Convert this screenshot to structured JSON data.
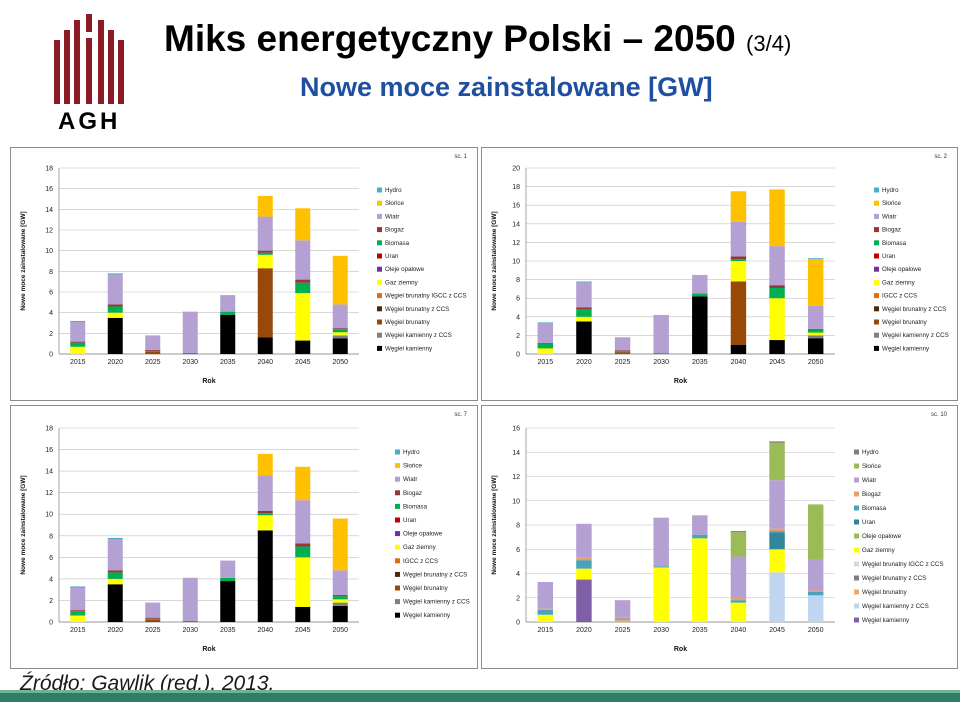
{
  "header": {
    "title_main": "Miks energetyczny Polski – 2050",
    "title_suffix": "(3/4)",
    "subtitle": "Nowe moce zainstalowane [GW]",
    "logo_text": "AGH"
  },
  "footer": {
    "source": "Źródło: Gawlik (red.), 2013."
  },
  "colors": {
    "title": "#000000",
    "subtitle": "#1f4fa0",
    "bottom_bar": "#2e7d64",
    "logo": "#8b1b24"
  },
  "chart_data": [
    {
      "type": "bar",
      "stacked": true,
      "scenario_label": "sc. 1",
      "xlabel": "Rok",
      "ylabel": "Nowe moce zainstalowane [GW]",
      "ylim": [
        0,
        18
      ],
      "yticks": [
        0,
        2,
        4,
        6,
        8,
        10,
        12,
        14,
        16,
        18
      ],
      "categories": [
        "2015",
        "2020",
        "2025",
        "2030",
        "2035",
        "2040",
        "2045",
        "2050"
      ],
      "legend_position": "right",
      "series": [
        {
          "name": "Węgiel kamienny",
          "color": "#000000",
          "values": [
            0,
            3.5,
            0,
            0,
            3.8,
            1.6,
            1.3,
            1.5
          ]
        },
        {
          "name": "Węgiel kamienny z CCS",
          "color": "#7f7f7f",
          "values": [
            0,
            0,
            0,
            0,
            0,
            0,
            0,
            0.3
          ]
        },
        {
          "name": "Węgiel brunatny",
          "color": "#984807",
          "values": [
            0,
            0,
            0.2,
            0,
            0,
            6.7,
            0,
            0
          ]
        },
        {
          "name": "Węgiel brunatny z CCS",
          "color": "#4a2a0a",
          "values": [
            0,
            0,
            0,
            0,
            0,
            0,
            0,
            0
          ]
        },
        {
          "name": "Węgiel brunatny IGCC z CCS",
          "color": "#e36c0a",
          "values": [
            0,
            0,
            0,
            0,
            0,
            0,
            0,
            0
          ]
        },
        {
          "name": "Gaz ziemny",
          "color": "#ffff00",
          "values": [
            0.7,
            0.5,
            0,
            0,
            0,
            1.3,
            4.6,
            0.3
          ]
        },
        {
          "name": "Oleje opałowe",
          "color": "#7030a0",
          "values": [
            0,
            0,
            0,
            0,
            0,
            0,
            0,
            0
          ]
        },
        {
          "name": "Uran",
          "color": "#c00000",
          "values": [
            0,
            0,
            0,
            0,
            0,
            0,
            0,
            0
          ]
        },
        {
          "name": "Biomasa",
          "color": "#00b050",
          "values": [
            0.4,
            0.6,
            0.1,
            0.1,
            0.3,
            0.2,
            1.0,
            0.3
          ]
        },
        {
          "name": "Biogaz",
          "color": "#963634",
          "values": [
            0.1,
            0.2,
            0.1,
            0,
            0,
            0.2,
            0.3,
            0.1
          ]
        },
        {
          "name": "Wiatr",
          "color": "#b4a0d2",
          "values": [
            1.9,
            2.9,
            1.4,
            4.0,
            1.6,
            3.3,
            3.8,
            2.3
          ]
        },
        {
          "name": "Słońce",
          "color": "#ffc000",
          "values": [
            0,
            0,
            0,
            0,
            0,
            2.0,
            3.1,
            4.7
          ]
        },
        {
          "name": "Hydro",
          "color": "#4bacc6",
          "values": [
            0.1,
            0.1,
            0,
            0,
            0,
            0,
            0,
            0
          ]
        }
      ]
    },
    {
      "type": "bar",
      "stacked": true,
      "scenario_label": "sc. 2",
      "xlabel": "Rok",
      "ylabel": "Nowe moce zainstalowane [GW]",
      "ylim": [
        0,
        20
      ],
      "yticks": [
        0,
        2,
        4,
        6,
        8,
        10,
        12,
        14,
        16,
        18,
        20
      ],
      "categories": [
        "2015",
        "2020",
        "2025",
        "2030",
        "2035",
        "2040",
        "2045",
        "2050"
      ],
      "legend_position": "right",
      "series": [
        {
          "name": "Węgiel kamienny",
          "color": "#000000",
          "values": [
            0,
            3.5,
            0,
            0,
            6.2,
            1.0,
            1.5,
            1.7
          ]
        },
        {
          "name": "Węgiel kamienny z CCS",
          "color": "#7f7f7f",
          "values": [
            0,
            0,
            0,
            0,
            0,
            0,
            0,
            0.3
          ]
        },
        {
          "name": "Węgiel brunatny",
          "color": "#984807",
          "values": [
            0,
            0,
            0.2,
            0,
            0,
            6.8,
            0,
            0
          ]
        },
        {
          "name": "Węgiel brunatny z CCS",
          "color": "#4a2a0a",
          "values": [
            0,
            0,
            0,
            0,
            0,
            0,
            0,
            0
          ]
        },
        {
          "name": "IGCC z CCS",
          "color": "#e36c0a",
          "values": [
            0,
            0,
            0,
            0,
            0,
            0,
            0,
            0
          ]
        },
        {
          "name": "Gaz ziemny",
          "color": "#ffff00",
          "values": [
            0.6,
            0.5,
            0,
            0,
            0,
            2.2,
            4.5,
            0.3
          ]
        },
        {
          "name": "Oleje opałowe",
          "color": "#7030a0",
          "values": [
            0,
            0,
            0,
            0,
            0,
            0,
            0,
            0
          ]
        },
        {
          "name": "Uran",
          "color": "#c00000",
          "values": [
            0,
            0,
            0,
            0,
            0,
            0,
            0,
            0
          ]
        },
        {
          "name": "Biomasa",
          "color": "#00b050",
          "values": [
            0.5,
            0.8,
            0.1,
            0.1,
            0.3,
            0.2,
            1.1,
            0.3
          ]
        },
        {
          "name": "Biogaz",
          "color": "#963634",
          "values": [
            0.1,
            0.2,
            0.1,
            0,
            0,
            0.3,
            0.3,
            0.1
          ]
        },
        {
          "name": "Wiatr",
          "color": "#b4a0d2",
          "values": [
            2.1,
            2.7,
            1.4,
            4.1,
            2.0,
            3.7,
            4.2,
            2.5
          ]
        },
        {
          "name": "Słońce",
          "color": "#ffc000",
          "values": [
            0,
            0,
            0,
            0,
            0,
            3.3,
            6.1,
            5.0
          ]
        },
        {
          "name": "Hydro",
          "color": "#4bacc6",
          "values": [
            0.1,
            0.1,
            0,
            0,
            0,
            0,
            0,
            0.1
          ]
        }
      ]
    },
    {
      "type": "bar",
      "stacked": true,
      "scenario_label": "sc. 7",
      "xlabel": "Rok",
      "ylabel": "Nowe moce zainstalowane [GW]",
      "ylim": [
        0,
        18
      ],
      "yticks": [
        0,
        2,
        4,
        6,
        8,
        10,
        12,
        14,
        16,
        18
      ],
      "categories": [
        "2015",
        "2020",
        "2025",
        "2030",
        "2035",
        "2040",
        "2045",
        "2050"
      ],
      "legend_position": "right",
      "series": [
        {
          "name": "Węgiel kamienny",
          "color": "#000000",
          "values": [
            0,
            3.5,
            0,
            0,
            3.8,
            8.5,
            1.4,
            1.5
          ]
        },
        {
          "name": "Węgiel kamienny z CCS",
          "color": "#7f7f7f",
          "values": [
            0,
            0,
            0,
            0,
            0,
            0,
            0,
            0.3
          ]
        },
        {
          "name": "Węgiel brunatny",
          "color": "#984807",
          "values": [
            0,
            0,
            0.2,
            0,
            0,
            0,
            0,
            0
          ]
        },
        {
          "name": "Węgiel brunatny z CCS",
          "color": "#4a2a0a",
          "values": [
            0,
            0,
            0,
            0,
            0,
            0,
            0,
            0
          ]
        },
        {
          "name": "IGCC z CCS",
          "color": "#e36c0a",
          "values": [
            0,
            0,
            0,
            0,
            0,
            0,
            0,
            0
          ]
        },
        {
          "name": "Gaz ziemny",
          "color": "#ffff00",
          "values": [
            0.6,
            0.5,
            0,
            0,
            0,
            1.4,
            4.6,
            0.3
          ]
        },
        {
          "name": "Oleje opałowe",
          "color": "#7030a0",
          "values": [
            0,
            0,
            0,
            0,
            0,
            0,
            0,
            0
          ]
        },
        {
          "name": "Uran",
          "color": "#c00000",
          "values": [
            0,
            0,
            0,
            0,
            0,
            0,
            0,
            0
          ]
        },
        {
          "name": "Biomasa",
          "color": "#00b050",
          "values": [
            0.4,
            0.6,
            0.1,
            0.1,
            0.3,
            0.2,
            1.0,
            0.3
          ]
        },
        {
          "name": "Biogaz",
          "color": "#963634",
          "values": [
            0.1,
            0.2,
            0.1,
            0,
            0,
            0.2,
            0.3,
            0.1
          ]
        },
        {
          "name": "Wiatr",
          "color": "#b4a0d2",
          "values": [
            2.1,
            2.9,
            1.4,
            4.0,
            1.6,
            3.3,
            4.0,
            2.3
          ]
        },
        {
          "name": "Słońce",
          "color": "#ffc000",
          "values": [
            0,
            0,
            0,
            0,
            0,
            2.0,
            3.1,
            4.8
          ]
        },
        {
          "name": "Hydro",
          "color": "#4bacc6",
          "values": [
            0.1,
            0.1,
            0,
            0,
            0,
            0,
            0,
            0
          ]
        }
      ]
    },
    {
      "type": "bar",
      "stacked": true,
      "scenario_label": "sc. 10",
      "xlabel": "Rok",
      "ylabel": "Nowe moce zainstalowane [GW]",
      "ylim": [
        0,
        16
      ],
      "yticks": [
        0,
        2,
        4,
        6,
        8,
        10,
        12,
        14,
        16
      ],
      "categories": [
        "2015",
        "2020",
        "2025",
        "2030",
        "2035",
        "2040",
        "2045",
        "2050"
      ],
      "legend_position": "right",
      "series": [
        {
          "name": "Węgiel kamienny",
          "color": "#7f5fa5",
          "values": [
            0,
            3.5,
            0,
            0,
            0,
            0,
            0,
            0
          ]
        },
        {
          "name": "Węgiel kamienny z CCS",
          "color": "#c0d5ef",
          "values": [
            0,
            0,
            0,
            0,
            0,
            0,
            4.1,
            2.2
          ]
        },
        {
          "name": "Węgiel brunatny",
          "color": "#f0a868",
          "values": [
            0,
            0,
            0.2,
            0,
            0,
            0,
            0,
            0
          ]
        },
        {
          "name": "Węgiel brunatny z CCS",
          "color": "#7f7f7f",
          "values": [
            0,
            0,
            0,
            0,
            0,
            0,
            0,
            0
          ]
        },
        {
          "name": "Węgiel brunatny IGCC z CCS",
          "color": "#d9d9d9",
          "values": [
            0,
            0,
            0,
            0,
            0,
            0,
            0,
            0
          ]
        },
        {
          "name": "Gaz ziemny",
          "color": "#ffff00",
          "values": [
            0.6,
            0.9,
            0,
            4.5,
            6.9,
            1.6,
            1.9,
            0
          ]
        },
        {
          "name": "Oleje opałowe",
          "color": "#9bbb59",
          "values": [
            0,
            0,
            0,
            0,
            0,
            0,
            0,
            0
          ]
        },
        {
          "name": "Uran",
          "color": "#31859c",
          "values": [
            0,
            0,
            0,
            0,
            0,
            0,
            1.4,
            0
          ]
        },
        {
          "name": "Biomasa",
          "color": "#4aa3b8",
          "values": [
            0.4,
            0.7,
            0.1,
            0.1,
            0.3,
            0.2,
            0.1,
            0.3
          ]
        },
        {
          "name": "Biogaz",
          "color": "#e6a06c",
          "values": [
            0.1,
            0.2,
            0.1,
            0,
            0,
            0.2,
            0.2,
            0.1
          ]
        },
        {
          "name": "Wiatr",
          "color": "#b4a0d2",
          "values": [
            2.2,
            2.8,
            1.4,
            4.0,
            1.6,
            3.4,
            4.0,
            2.6
          ]
        },
        {
          "name": "Słońce",
          "color": "#9bbb59",
          "values": [
            0,
            0,
            0,
            0,
            0,
            2.0,
            3.1,
            4.5
          ]
        },
        {
          "name": "Hydro",
          "color": "#7f7f7f",
          "values": [
            0,
            0,
            0,
            0,
            0,
            0.1,
            0.1,
            0
          ]
        }
      ]
    }
  ]
}
